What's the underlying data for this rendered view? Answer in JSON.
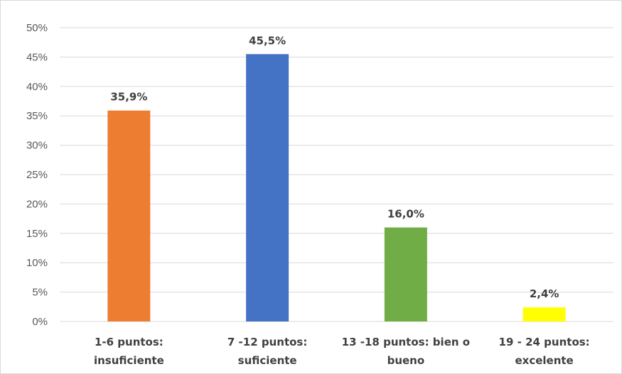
{
  "chart_data": {
    "type": "bar",
    "title": "",
    "xlabel": "",
    "ylabel": "",
    "categories": [
      [
        "1-6 puntos:",
        "insuficiente"
      ],
      [
        "7 -12 puntos:",
        "suficiente"
      ],
      [
        "13 -18 puntos: bien o",
        "bueno"
      ],
      [
        "19 - 24 puntos:",
        "excelente"
      ]
    ],
    "values": [
      35.9,
      45.5,
      16.0,
      2.4
    ],
    "data_labels": [
      "35,9%",
      "45,5%",
      "16,0%",
      "2,4%"
    ],
    "colors": [
      "#ED7D31",
      "#4472C4",
      "#70AD47",
      "#FFFF00"
    ],
    "ylim": [
      0,
      50
    ],
    "yticks": [
      0,
      5,
      10,
      15,
      20,
      25,
      30,
      35,
      40,
      45,
      50
    ],
    "ytick_labels": [
      "0%",
      "5%",
      "10%",
      "15%",
      "20%",
      "25%",
      "30%",
      "35%",
      "40%",
      "45%",
      "50%"
    ],
    "grid": true,
    "legend": "none"
  }
}
